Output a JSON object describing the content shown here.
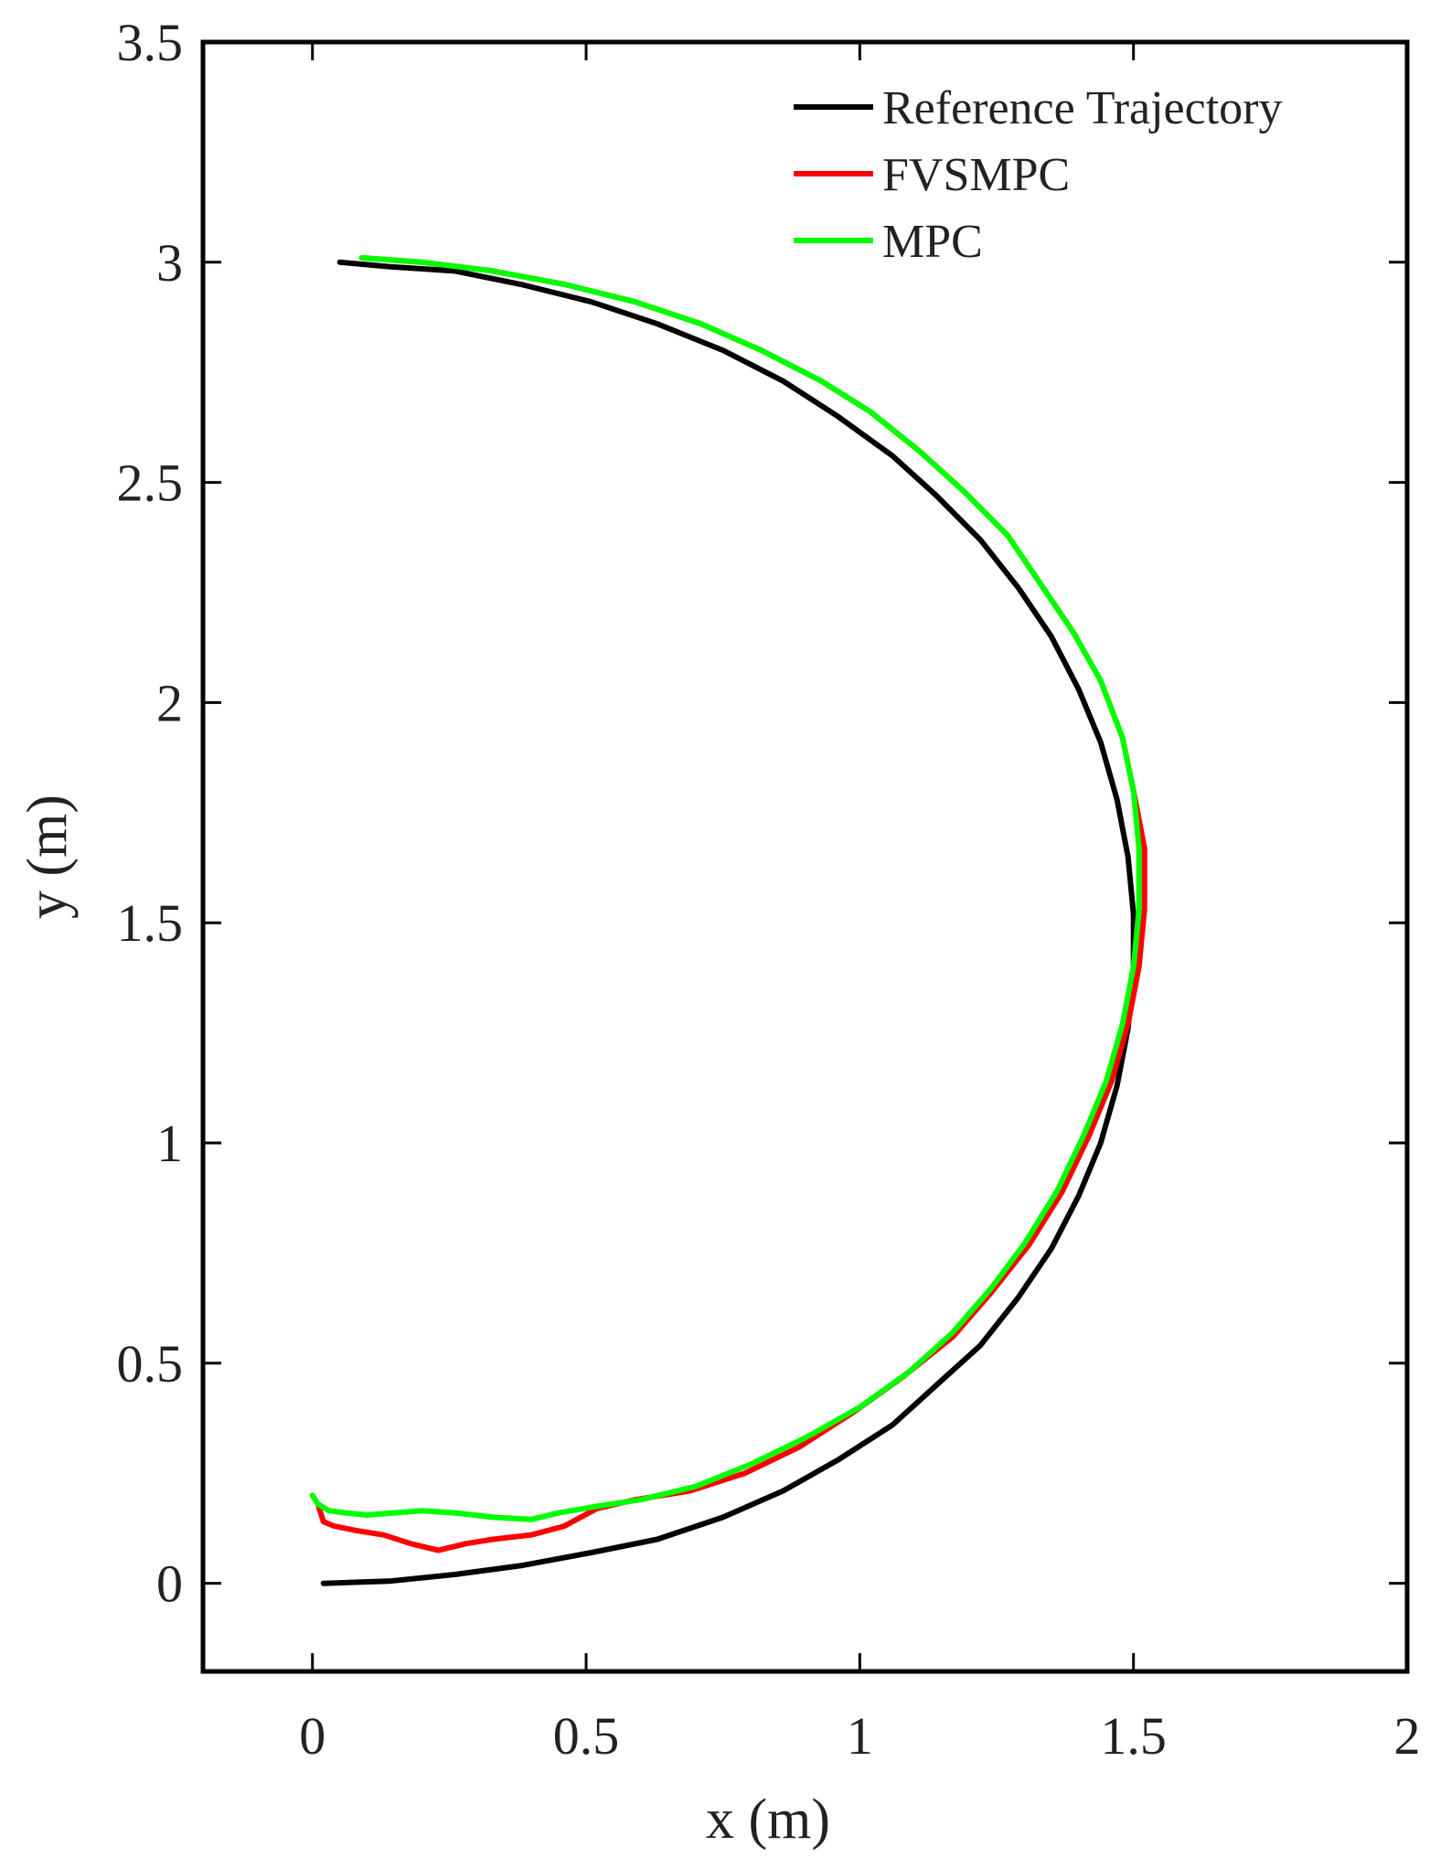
{
  "chart_data": {
    "type": "line",
    "title": "",
    "xlabel": "x (m)",
    "ylabel": "y (m)",
    "xlim": [
      -0.2,
      2
    ],
    "ylim": [
      -0.2,
      3.5
    ],
    "xticks": [
      0,
      0.5,
      1,
      1.5,
      2
    ],
    "xtick_labels": [
      "0",
      "0.5",
      "1",
      "1.5",
      "2"
    ],
    "yticks": [
      0,
      0.5,
      1,
      1.5,
      2,
      2.5,
      3,
      3.5
    ],
    "ytick_labels": [
      "0",
      "0.5",
      "1",
      "1.5",
      "2",
      "2.5",
      "3",
      "3.5"
    ],
    "grid": false,
    "legend_position": "top-right",
    "series": [
      {
        "name": "Reference Trajectory",
        "color": "#000000",
        "x": [
          0.05,
          0.14,
          0.26,
          0.38,
          0.51,
          0.63,
          0.75,
          0.86,
          0.96,
          1.06,
          1.14,
          1.22,
          1.29,
          1.35,
          1.4,
          1.44,
          1.47,
          1.49,
          1.5,
          1.5,
          1.49,
          1.47,
          1.44,
          1.4,
          1.35,
          1.29,
          1.22,
          1.14,
          1.06,
          0.96,
          0.86,
          0.75,
          0.63,
          0.51,
          0.38,
          0.26,
          0.14,
          0.02
        ],
        "y": [
          3.0,
          2.99,
          2.98,
          2.95,
          2.91,
          2.86,
          2.8,
          2.73,
          2.65,
          2.56,
          2.47,
          2.37,
          2.26,
          2.15,
          2.03,
          1.91,
          1.78,
          1.65,
          1.52,
          1.39,
          1.26,
          1.13,
          1.0,
          0.88,
          0.76,
          0.65,
          0.54,
          0.45,
          0.36,
          0.28,
          0.21,
          0.15,
          0.1,
          0.07,
          0.04,
          0.02,
          0.005,
          0.0
        ]
      },
      {
        "name": "FVSMPC",
        "color": "#ff0000",
        "x": [
          0.09,
          0.2,
          0.33,
          0.46,
          0.59,
          0.71,
          0.82,
          0.93,
          1.02,
          1.11,
          1.19,
          1.27,
          1.33,
          1.39,
          1.44,
          1.48,
          1.5,
          1.52,
          1.52,
          1.51,
          1.49,
          1.46,
          1.42,
          1.37,
          1.31,
          1.24,
          1.17,
          1.08,
          0.99,
          0.89,
          0.79,
          0.69,
          0.59,
          0.52,
          0.46,
          0.4,
          0.33,
          0.28,
          0.23,
          0.18,
          0.13,
          0.08,
          0.04,
          0.02,
          0.01
        ],
        "y": [
          3.01,
          3.0,
          2.98,
          2.95,
          2.91,
          2.86,
          2.8,
          2.73,
          2.66,
          2.57,
          2.48,
          2.38,
          2.27,
          2.16,
          2.05,
          1.92,
          1.8,
          1.67,
          1.53,
          1.4,
          1.27,
          1.14,
          1.02,
          0.89,
          0.77,
          0.66,
          0.56,
          0.47,
          0.39,
          0.31,
          0.25,
          0.21,
          0.19,
          0.17,
          0.13,
          0.11,
          0.1,
          0.09,
          0.075,
          0.09,
          0.11,
          0.12,
          0.13,
          0.14,
          0.18
        ]
      },
      {
        "name": "MPC",
        "color": "#00ff00",
        "x": [
          0.09,
          0.2,
          0.33,
          0.46,
          0.59,
          0.71,
          0.82,
          0.93,
          1.02,
          1.11,
          1.19,
          1.27,
          1.33,
          1.39,
          1.44,
          1.48,
          1.5,
          1.51,
          1.51,
          1.5,
          1.48,
          1.45,
          1.41,
          1.36,
          1.3,
          1.24,
          1.17,
          1.09,
          1.0,
          0.9,
          0.8,
          0.7,
          0.6,
          0.52,
          0.45,
          0.4,
          0.33,
          0.26,
          0.2,
          0.15,
          0.1,
          0.06,
          0.03,
          0.01,
          0.0
        ],
        "y": [
          3.01,
          3.0,
          2.98,
          2.95,
          2.91,
          2.86,
          2.8,
          2.73,
          2.66,
          2.57,
          2.48,
          2.38,
          2.27,
          2.16,
          2.05,
          1.92,
          1.8,
          1.67,
          1.53,
          1.4,
          1.27,
          1.14,
          1.02,
          0.89,
          0.77,
          0.67,
          0.57,
          0.48,
          0.4,
          0.33,
          0.27,
          0.22,
          0.19,
          0.175,
          0.16,
          0.145,
          0.15,
          0.16,
          0.165,
          0.16,
          0.155,
          0.16,
          0.165,
          0.18,
          0.2
        ]
      }
    ]
  }
}
